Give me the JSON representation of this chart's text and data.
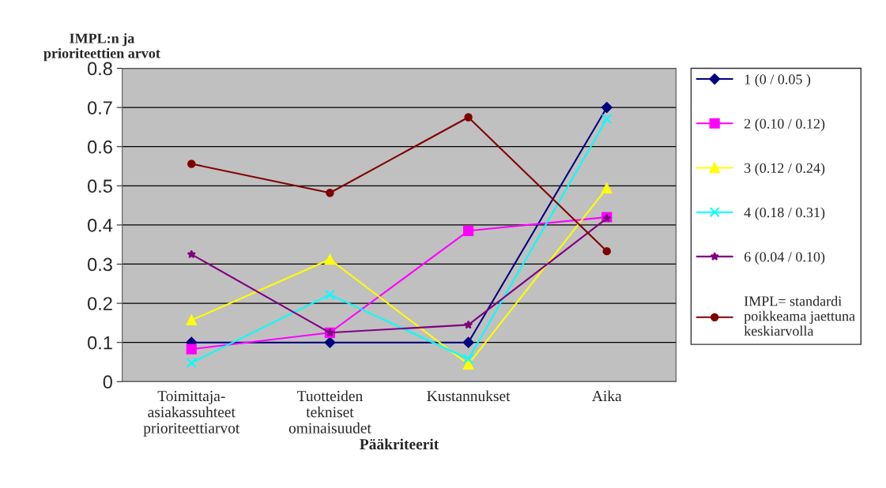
{
  "chart_data": {
    "type": "line",
    "ylabel": "IMPL:n ja\nprioriteettien arvot",
    "xlabel": "Pääkriteerit",
    "categories": [
      "Toimittaja-\nasiakassuhteet\nprioriteettiarvot",
      "Tuotteiden\ntekniset\nominaisuudet",
      "Kustannukset",
      "Aika"
    ],
    "series": [
      {
        "name": "1 (0 / 0.05 )",
        "color": "#000080",
        "marker": "diamond",
        "values": [
          0.1,
          0.1,
          0.1,
          0.7
        ]
      },
      {
        "name": "2 (0.10 / 0.12)",
        "color": "#ff00ff",
        "marker": "square",
        "values": [
          0.083,
          0.125,
          0.385,
          0.42
        ]
      },
      {
        "name": "3 (0.12 / 0.24)",
        "color": "#ffff00",
        "marker": "triangle",
        "values": [
          0.157,
          0.312,
          0.044,
          0.494
        ]
      },
      {
        "name": "4 (0.18 / 0.31)",
        "color": "#00ffff",
        "marker": "cross",
        "values": [
          0.048,
          0.222,
          0.058,
          0.671
        ]
      },
      {
        "name": "6 (0.04 / 0.10)",
        "color": "#800080",
        "marker": "star",
        "values": [
          0.325,
          0.125,
          0.145,
          0.417
        ]
      },
      {
        "name": "IMPL= standardi\npoikkeama jaettuna\nkeskiarvolla",
        "color": "#800000",
        "marker": "circle",
        "values": [
          0.556,
          0.482,
          0.675,
          0.333
        ]
      }
    ],
    "ylim": [
      0,
      0.8
    ],
    "yticks": [
      0,
      0.1,
      0.2,
      0.3,
      0.4,
      0.5,
      0.6,
      0.7,
      0.8
    ],
    "grid": "y",
    "legend": "right"
  }
}
